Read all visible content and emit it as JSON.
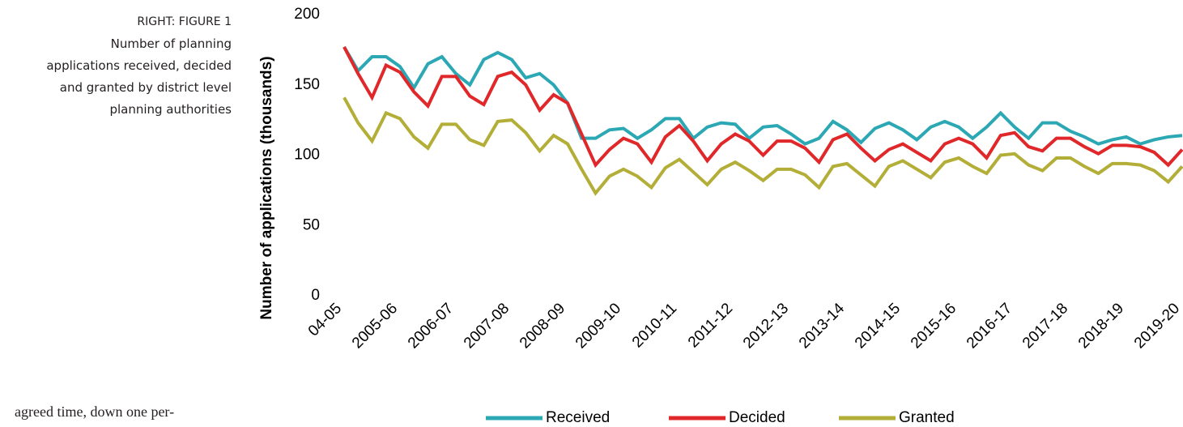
{
  "sidebar": {
    "label": "RIGHT: FIGURE 1",
    "caption_lines": [
      "Number of planning",
      "applications received, decided",
      "and granted by district level",
      "planning authorities"
    ]
  },
  "body_text": "agreed time, down one per-",
  "chart_data": {
    "type": "line",
    "y_label": "Number of applications (thousands)",
    "categories": [
      "04-05",
      null,
      null,
      null,
      "2005-06",
      null,
      null,
      null,
      "2006-07",
      null,
      null,
      null,
      "2007-08",
      null,
      null,
      null,
      "2008-09",
      null,
      null,
      null,
      "2009-10",
      null,
      null,
      null,
      "2010-11",
      null,
      null,
      null,
      "2011-12",
      null,
      null,
      null,
      "2012-13",
      null,
      null,
      null,
      "2013-14",
      null,
      null,
      null,
      "2014-15",
      null,
      null,
      null,
      "2015-16",
      null,
      null,
      null,
      "2016-17",
      null,
      null,
      null,
      "2017-18",
      null,
      null,
      null,
      "2018-19",
      null,
      null,
      null,
      "2019-20"
    ],
    "ylim": [
      0,
      200
    ],
    "yticks": [
      0,
      50,
      100,
      150,
      200
    ],
    "grid": false,
    "legend": "bottom",
    "series": [
      {
        "name": "Received",
        "color": "#2ba8b4",
        "values": [
          177,
          160,
          170,
          170,
          163,
          148,
          165,
          170,
          158,
          150,
          168,
          173,
          168,
          155,
          158,
          150,
          137,
          112,
          112,
          118,
          119,
          112,
          118,
          126,
          126,
          112,
          120,
          123,
          122,
          112,
          120,
          121,
          115,
          108,
          112,
          124,
          118,
          109,
          119,
          123,
          118,
          111,
          120,
          124,
          120,
          112,
          120,
          130,
          120,
          112,
          123,
          123,
          117,
          113,
          108,
          111,
          113,
          108,
          111,
          113,
          114
        ]
      },
      {
        "name": "Decided",
        "color": "#e0282a",
        "values": [
          177,
          158,
          141,
          164,
          159,
          145,
          135,
          156,
          156,
          142,
          136,
          156,
          159,
          150,
          132,
          143,
          137,
          115,
          93,
          104,
          112,
          108,
          95,
          113,
          121,
          110,
          96,
          108,
          115,
          110,
          100,
          110,
          110,
          105,
          95,
          111,
          115,
          105,
          96,
          104,
          108,
          102,
          96,
          108,
          112,
          108,
          98,
          114,
          116,
          106,
          103,
          112,
          112,
          106,
          101,
          107,
          107,
          106,
          102,
          93,
          104
        ]
      },
      {
        "name": "Granted",
        "color": "#b3ae38",
        "values": [
          141,
          123,
          110,
          130,
          126,
          113,
          105,
          122,
          122,
          111,
          107,
          124,
          125,
          116,
          103,
          114,
          108,
          90,
          73,
          85,
          90,
          85,
          77,
          91,
          97,
          88,
          79,
          90,
          95,
          89,
          82,
          90,
          90,
          86,
          77,
          92,
          94,
          86,
          78,
          92,
          96,
          90,
          84,
          95,
          98,
          92,
          87,
          100,
          101,
          93,
          89,
          98,
          98,
          92,
          87,
          94,
          94,
          93,
          89,
          81,
          92
        ]
      }
    ]
  }
}
